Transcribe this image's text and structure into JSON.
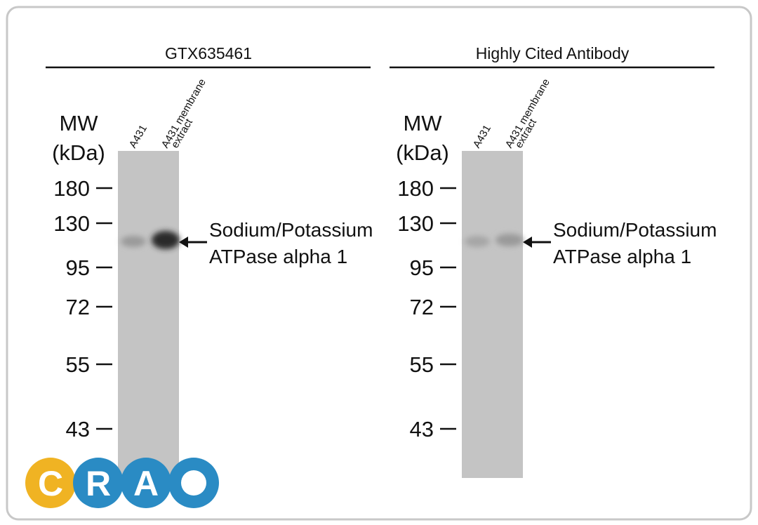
{
  "panels": [
    {
      "title": "GTX635461",
      "mw_label": [
        "MW",
        "(kDa)"
      ],
      "lanes": [
        [
          "A431"
        ],
        [
          "A431 membrane",
          "extract"
        ]
      ],
      "markers": [
        180,
        130,
        95,
        72,
        55,
        43
      ],
      "target": [
        "Sodium/Potassium",
        "ATPase alpha 1"
      ]
    },
    {
      "title": "Highly Cited Antibody",
      "mw_label": [
        "MW",
        "(kDa)"
      ],
      "lanes": [
        [
          "A431"
        ],
        [
          "A431 membrane",
          "extract"
        ]
      ],
      "markers": [
        180,
        130,
        95,
        72,
        55,
        43
      ],
      "target": [
        "Sodium/Potassium",
        "ATPase alpha 1"
      ]
    }
  ],
  "logo": [
    "C",
    "R",
    "A"
  ]
}
